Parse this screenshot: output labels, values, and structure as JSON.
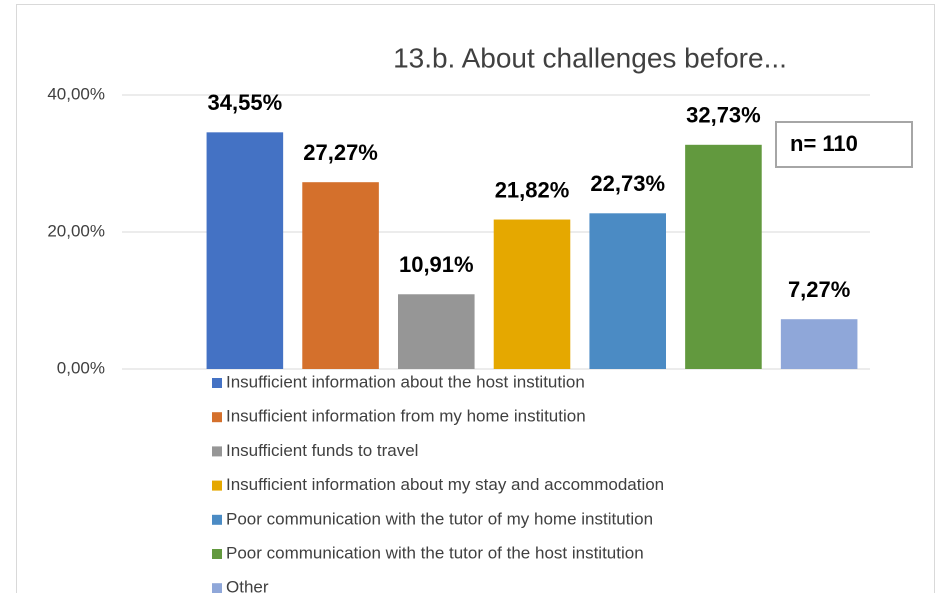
{
  "chart_data": {
    "type": "bar",
    "title": "13.b. About challenges before...",
    "categories": [
      "Insufficient information about the host institution",
      "Insufficient information from my home institution",
      "Insufficient funds to travel",
      "Insufficient information about my stay and accommodation",
      "Poor communication with the tutor of my home institution",
      "Poor communication with the tutor of the host institution",
      "Other"
    ],
    "values": [
      34.55,
      27.27,
      10.91,
      21.82,
      22.73,
      32.73,
      7.27
    ],
    "value_labels": [
      "34,55%",
      "27,27%",
      "10,91%",
      "21,82%",
      "22,73%",
      "32,73%",
      "7,27%"
    ],
    "colors": [
      "#4472c4",
      "#d4702c",
      "#969696",
      "#e5a800",
      "#4b8bc4",
      "#62993e",
      "#8fa7d9"
    ],
    "ylim": [
      0,
      40
    ],
    "yticks": [
      {
        "value": 0,
        "label": "0,00%"
      },
      {
        "value": 20,
        "label": "20,00%"
      },
      {
        "value": 40,
        "label": "40,00%"
      }
    ],
    "grid": true,
    "legend": "bottom",
    "annotation": "n= 110"
  }
}
